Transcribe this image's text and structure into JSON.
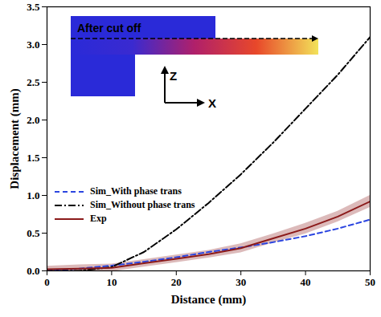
{
  "chart_data": {
    "type": "line",
    "x_label": "Distance (mm)",
    "y_label": "Displacement (mm)",
    "x": [
      0,
      5,
      10,
      15,
      20,
      25,
      30,
      35,
      40,
      45,
      50
    ],
    "series": [
      {
        "name": "Sim_With phase trans",
        "color": "#2b45e0",
        "line_style": "dashed",
        "values": [
          0.0,
          0.03,
          0.07,
          0.12,
          0.18,
          0.25,
          0.31,
          0.38,
          0.46,
          0.56,
          0.68
        ]
      },
      {
        "name": "Sim_Without phase trans",
        "color": "#000000",
        "line_style": "dashdot",
        "values": [
          0.0,
          0.0,
          0.05,
          0.25,
          0.55,
          0.9,
          1.28,
          1.7,
          2.15,
          2.6,
          3.1
        ]
      },
      {
        "name": "Exp",
        "color": "#8b1a1a",
        "line_style": "solid",
        "values": [
          0.02,
          0.03,
          0.04,
          0.1,
          0.16,
          0.22,
          0.3,
          0.43,
          0.56,
          0.72,
          0.92
        ],
        "error": [
          0.04,
          0.05,
          0.05,
          0.05,
          0.05,
          0.05,
          0.06,
          0.06,
          0.07,
          0.07,
          0.08
        ]
      }
    ],
    "xlim": [
      0,
      50
    ],
    "ylim": [
      0,
      3.5
    ],
    "xticks": [
      0,
      10,
      20,
      30,
      40,
      50
    ],
    "yticks": [
      {
        "value": 0,
        "label": "0.0"
      },
      0.5,
      {
        "value": 1,
        "label": "1.0"
      },
      1.5,
      {
        "value": 2,
        "label": "2.0"
      },
      2.5,
      {
        "value": 3,
        "label": "3.0"
      },
      3.5
    ],
    "legend": "left",
    "annotations": [
      "After cut off",
      "Z",
      "X"
    ]
  }
}
